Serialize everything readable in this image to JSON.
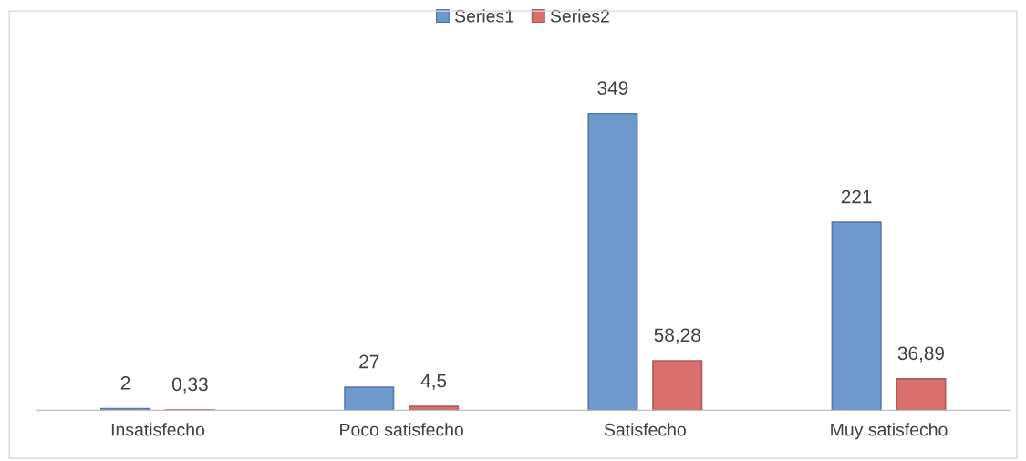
{
  "chart_data": {
    "type": "bar",
    "categories": [
      "Insatisfecho",
      "Poco satisfecho",
      "Satisfecho",
      "Muy satisfecho"
    ],
    "series": [
      {
        "name": "Series1",
        "color": "#6f98cf",
        "values": [
          2,
          27,
          349,
          221
        ],
        "value_labels": [
          "2",
          "27",
          "349",
          "221"
        ]
      },
      {
        "name": "Series2",
        "color": "#d9706e",
        "values": [
          0.33,
          4.5,
          58.28,
          36.89
        ],
        "value_labels": [
          "0,33",
          "4,5",
          "58,28",
          "36,89"
        ]
      }
    ],
    "legend": "top",
    "grid": false,
    "tick_labels": "x"
  }
}
